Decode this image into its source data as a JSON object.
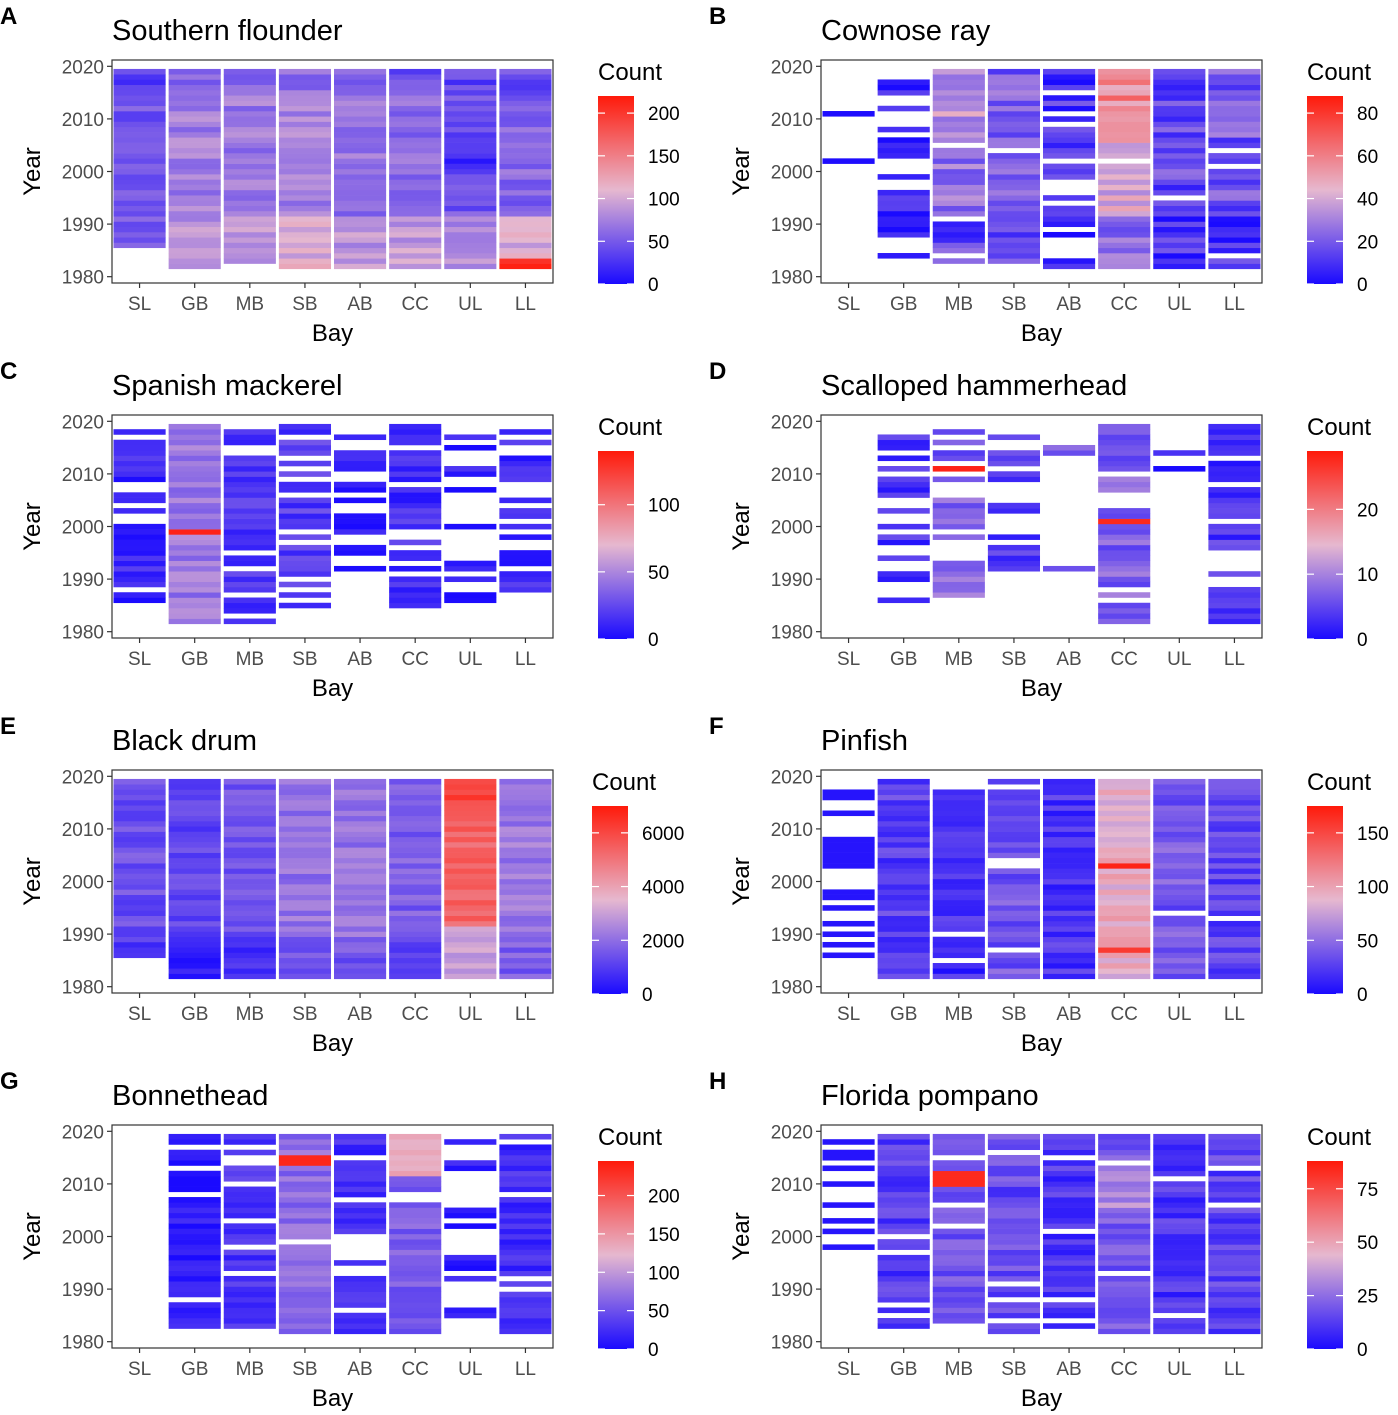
{
  "figure": {
    "color_low": "#1a0aff",
    "color_mid": "#e6b8cf",
    "color_high": "#ff1a0a"
  },
  "chart_data": [
    {
      "type": "heatmap",
      "panel": "A",
      "title": "Southern flounder",
      "xlabel": "Bay",
      "ylabel": "Year",
      "categories": [
        "SL",
        "GB",
        "MB",
        "SB",
        "AB",
        "CC",
        "UL",
        "LL"
      ],
      "y_ticks": [
        1980,
        1990,
        2000,
        2010,
        2020
      ],
      "ylim": [
        1980,
        2020
      ],
      "legend_title": "Count",
      "legend_max": 220,
      "legend_ticks": [
        0,
        50,
        100,
        150,
        200
      ],
      "pattern": "flounder"
    },
    {
      "type": "heatmap",
      "panel": "B",
      "title": "Cownose ray",
      "xlabel": "Bay",
      "ylabel": "Year",
      "categories": [
        "SL",
        "GB",
        "MB",
        "SB",
        "AB",
        "CC",
        "UL",
        "LL"
      ],
      "y_ticks": [
        1980,
        1990,
        2000,
        2010,
        2020
      ],
      "ylim": [
        1980,
        2020
      ],
      "legend_title": "Count",
      "legend_max": 88,
      "legend_ticks": [
        0,
        20,
        40,
        60,
        80
      ],
      "pattern": "cownose"
    },
    {
      "type": "heatmap",
      "panel": "C",
      "title": "Spanish mackerel",
      "xlabel": "Bay",
      "ylabel": "Year",
      "categories": [
        "SL",
        "GB",
        "MB",
        "SB",
        "AB",
        "CC",
        "UL",
        "LL"
      ],
      "y_ticks": [
        1980,
        1990,
        2000,
        2010,
        2020
      ],
      "ylim": [
        1980,
        2020
      ],
      "legend_title": "Count",
      "legend_max": 140,
      "legend_ticks": [
        0,
        50,
        100
      ],
      "pattern": "mackerel"
    },
    {
      "type": "heatmap",
      "panel": "D",
      "title": "Scalloped hammerhead",
      "xlabel": "Bay",
      "ylabel": "Year",
      "categories": [
        "SL",
        "GB",
        "MB",
        "SB",
        "AB",
        "CC",
        "UL",
        "LL"
      ],
      "y_ticks": [
        1980,
        1990,
        2000,
        2010,
        2020
      ],
      "ylim": [
        1980,
        2020
      ],
      "legend_title": "Count",
      "legend_max": 29,
      "legend_ticks": [
        0,
        10,
        20
      ],
      "pattern": "hammerhead"
    },
    {
      "type": "heatmap",
      "panel": "E",
      "title": "Black drum",
      "xlabel": "Bay",
      "ylabel": "Year",
      "categories": [
        "SL",
        "GB",
        "MB",
        "SB",
        "AB",
        "CC",
        "UL",
        "LL"
      ],
      "y_ticks": [
        1980,
        1990,
        2000,
        2010,
        2020
      ],
      "ylim": [
        1980,
        2020
      ],
      "legend_title": "Count",
      "legend_max": 7000,
      "legend_ticks": [
        0,
        2000,
        4000,
        6000
      ],
      "pattern": "drum"
    },
    {
      "type": "heatmap",
      "panel": "F",
      "title": "Pinfish",
      "xlabel": "Bay",
      "ylabel": "Year",
      "categories": [
        "SL",
        "GB",
        "MB",
        "SB",
        "AB",
        "CC",
        "UL",
        "LL"
      ],
      "y_ticks": [
        1980,
        1990,
        2000,
        2010,
        2020
      ],
      "ylim": [
        1980,
        2020
      ],
      "legend_title": "Count",
      "legend_max": 175,
      "legend_ticks": [
        0,
        50,
        100,
        150
      ],
      "pattern": "pinfish"
    },
    {
      "type": "heatmap",
      "panel": "G",
      "title": "Bonnethead",
      "xlabel": "Bay",
      "ylabel": "Year",
      "categories": [
        "SL",
        "GB",
        "MB",
        "SB",
        "AB",
        "CC",
        "UL",
        "LL"
      ],
      "y_ticks": [
        1980,
        1990,
        2000,
        2010,
        2020
      ],
      "ylim": [
        1980,
        2020
      ],
      "legend_title": "Count",
      "legend_max": 245,
      "legend_ticks": [
        0,
        50,
        100,
        150,
        200
      ],
      "pattern": "bonnethead"
    },
    {
      "type": "heatmap",
      "panel": "H",
      "title": "Florida pompano",
      "xlabel": "Bay",
      "ylabel": "Year",
      "categories": [
        "SL",
        "GB",
        "MB",
        "SB",
        "AB",
        "CC",
        "UL",
        "LL"
      ],
      "y_ticks": [
        1980,
        1990,
        2000,
        2010,
        2020
      ],
      "ylim": [
        1980,
        2020
      ],
      "legend_title": "Count",
      "legend_max": 88,
      "legend_ticks": [
        0,
        25,
        50,
        75
      ],
      "pattern": "pompano"
    }
  ]
}
